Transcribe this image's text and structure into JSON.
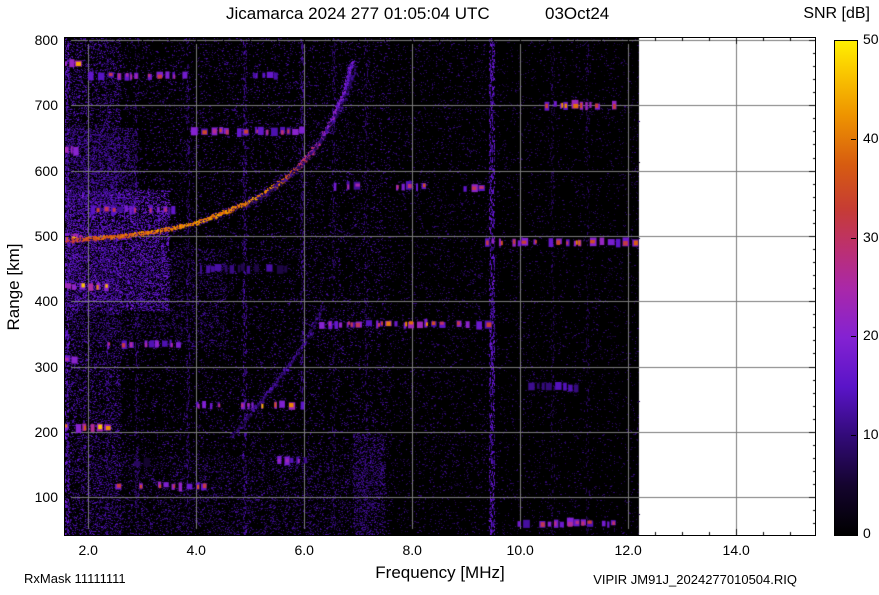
{
  "title": {
    "left": "Jicamarca 2024 277 01:05:04 UTC",
    "right": "03Oct24"
  },
  "ylabel": "Range [km]",
  "footer": {
    "rxmask": "RxMask 11111111",
    "xlabel": "Frequency [MHz]",
    "file": "VIPIR  JM91J_2024277010504.RIQ"
  },
  "colorbar": {
    "label": "SNR [dB]",
    "min": 0,
    "max": 50,
    "ticks": [
      0,
      10,
      20,
      30,
      40,
      50
    ],
    "stops": [
      [
        0,
        "#000000"
      ],
      [
        0.1,
        "#14042e"
      ],
      [
        0.2,
        "#320a78"
      ],
      [
        0.3,
        "#5a14c8"
      ],
      [
        0.4,
        "#8422d2"
      ],
      [
        0.5,
        "#aa28a8"
      ],
      [
        0.58,
        "#bc3070"
      ],
      [
        0.66,
        "#c63c34"
      ],
      [
        0.75,
        "#d75c10"
      ],
      [
        0.85,
        "#ee9400"
      ],
      [
        0.93,
        "#f9c300"
      ],
      [
        1,
        "#ffef00"
      ]
    ]
  },
  "chart_data": {
    "type": "heatmap",
    "title": "Jicamarca 2024 277 01:05:04 UTC 03Oct24",
    "xlabel": "Frequency [MHz]",
    "ylabel": "Range [km]",
    "zlabel": "SNR [dB]",
    "xlim": [
      1.57,
      15.46
    ],
    "ylim": [
      42,
      803
    ],
    "zlim": [
      0,
      50
    ],
    "grid": true,
    "data_fmax": 12.2,
    "xticks": [
      {
        "v": 2,
        "label": "2.0"
      },
      {
        "v": 4,
        "label": "4.0"
      },
      {
        "v": 6,
        "label": "6.0"
      },
      {
        "v": 8,
        "label": "8.0"
      },
      {
        "v": 10,
        "label": "10.0"
      },
      {
        "v": 12,
        "label": "12.0"
      },
      {
        "v": 14,
        "label": "14.0"
      }
    ],
    "yticks": [
      100,
      200,
      300,
      400,
      500,
      600,
      700,
      800
    ],
    "noise_patches": [
      {
        "f": [
          1.57,
          12.2
        ],
        "r": [
          42,
          803
        ],
        "n": 8000,
        "db": [
          4,
          11
        ]
      },
      {
        "f": [
          1.57,
          7.6
        ],
        "r": [
          42,
          803
        ],
        "n": 13000,
        "db": [
          5,
          13
        ]
      },
      {
        "f": [
          1.57,
          2.6
        ],
        "r": [
          42,
          803
        ],
        "n": 6000,
        "db": [
          6,
          15
        ]
      },
      {
        "f": [
          1.6,
          3.5
        ],
        "r": [
          385,
          570
        ],
        "n": 6500,
        "db": [
          8,
          19
        ]
      },
      {
        "f": [
          1.57,
          2.9
        ],
        "r": [
          545,
          665
        ],
        "n": 2200,
        "db": [
          6,
          14
        ]
      },
      {
        "f": [
          1.6,
          4.6
        ],
        "r": [
          330,
          480
        ],
        "n": 2400,
        "db": [
          5,
          12
        ]
      },
      {
        "f": [
          2.0,
          7.3
        ],
        "r": [
          42,
          165
        ],
        "n": 2600,
        "db": [
          5,
          12
        ]
      },
      {
        "f": [
          9.4,
          12.2
        ],
        "r": [
          42,
          803
        ],
        "n": 2200,
        "db": [
          4,
          10
        ]
      },
      {
        "f": [
          6.9,
          7.5
        ],
        "r": [
          42,
          200
        ],
        "n": 1100,
        "db": [
          6,
          13
        ]
      },
      {
        "f": [
          7.6,
          9.4
        ],
        "r": [
          42,
          803
        ],
        "n": 2600,
        "db": [
          4,
          11
        ]
      }
    ],
    "vertical_stripes": [
      {
        "f": 9.48,
        "w": 0.1,
        "r": [
          42,
          803
        ],
        "n": 950,
        "db": [
          8,
          18
        ]
      },
      {
        "f": 4.9,
        "w": 0.07,
        "r": [
          42,
          803
        ],
        "n": 420,
        "db": [
          6,
          14
        ]
      },
      {
        "f": 5.97,
        "w": 0.07,
        "r": [
          250,
          803
        ],
        "n": 330,
        "db": [
          6,
          13
        ]
      },
      {
        "f": 2.9,
        "w": 0.06,
        "r": [
          42,
          803
        ],
        "n": 260,
        "db": [
          6,
          12
        ]
      },
      {
        "f": 3.85,
        "w": 0.06,
        "r": [
          42,
          803
        ],
        "n": 260,
        "db": [
          6,
          12
        ]
      },
      {
        "f": 6.55,
        "w": 0.06,
        "r": [
          42,
          803
        ],
        "n": 240,
        "db": [
          5,
          11
        ]
      },
      {
        "f": 10.6,
        "w": 0.06,
        "r": [
          42,
          803
        ],
        "n": 200,
        "db": [
          4,
          10
        ]
      },
      {
        "f": 11.25,
        "w": 0.06,
        "r": [
          42,
          803
        ],
        "n": 200,
        "db": [
          4,
          10
        ]
      },
      {
        "f": 2.35,
        "w": 0.06,
        "r": [
          42,
          803
        ],
        "n": 240,
        "db": [
          6,
          12
        ]
      },
      {
        "f": 7.15,
        "w": 0.06,
        "r": [
          42,
          803
        ],
        "n": 200,
        "db": [
          5,
          11
        ]
      },
      {
        "f": 1.61,
        "w": 0.08,
        "r": [
          42,
          803
        ],
        "n": 700,
        "db": [
          8,
          18
        ]
      }
    ],
    "rfi_bands": [
      {
        "r": 763,
        "f": [
          1.57,
          1.9
        ],
        "base": 22,
        "core": 40
      },
      {
        "r": 745,
        "f": [
          2.0,
          3.75
        ],
        "base": 16,
        "core": 28
      },
      {
        "r": 745,
        "f": [
          5.05,
          5.55
        ],
        "base": 14,
        "core": 0
      },
      {
        "r": 700,
        "f": [
          10.35,
          11.8
        ],
        "base": 20,
        "core": 38
      },
      {
        "r": 660,
        "f": [
          3.9,
          5.95
        ],
        "base": 17,
        "core": 31
      },
      {
        "r": 631,
        "f": [
          1.57,
          1.85
        ],
        "base": 24,
        "core": 40
      },
      {
        "r": 576,
        "f": [
          6.55,
          7.05
        ],
        "base": 15,
        "core": 26
      },
      {
        "r": 576,
        "f": [
          7.7,
          8.2
        ],
        "base": 17,
        "core": 33
      },
      {
        "r": 574,
        "f": [
          8.95,
          9.35
        ],
        "base": 17,
        "core": 33
      },
      {
        "r": 540,
        "f": [
          2.05,
          3.55
        ],
        "base": 16,
        "core": 31
      },
      {
        "r": 490,
        "f": [
          9.35,
          12.15
        ],
        "base": 19,
        "core": 36
      },
      {
        "r": 497,
        "f": [
          1.57,
          2.0
        ],
        "base": 22,
        "core": 40
      },
      {
        "r": 450,
        "f": [
          3.9,
          5.7
        ],
        "base": 9,
        "core": 0
      },
      {
        "r": 423,
        "f": [
          1.57,
          2.3
        ],
        "base": 23,
        "core": 42
      },
      {
        "r": 365,
        "f": [
          6.15,
          7.5
        ],
        "base": 18,
        "core": 30
      },
      {
        "r": 365,
        "f": [
          7.5,
          8.35
        ],
        "base": 20,
        "core": 40
      },
      {
        "r": 365,
        "f": [
          8.35,
          9.45
        ],
        "base": 17,
        "core": 31
      },
      {
        "r": 334,
        "f": [
          2.35,
          3.8
        ],
        "base": 16,
        "core": 27
      },
      {
        "r": 310,
        "f": [
          1.57,
          1.8
        ],
        "base": 17,
        "core": 25
      },
      {
        "r": 268,
        "f": [
          10.15,
          11.0
        ],
        "base": 11,
        "core": 0
      },
      {
        "r": 241,
        "f": [
          4.0,
          5.2
        ],
        "base": 15,
        "core": 24
      },
      {
        "r": 241,
        "f": [
          5.2,
          5.85
        ],
        "base": 19,
        "core": 40
      },
      {
        "r": 241,
        "f": [
          5.85,
          6.15
        ],
        "base": 14,
        "core": 0
      },
      {
        "r": 207,
        "f": [
          1.57,
          2.3
        ],
        "base": 23,
        "core": 42
      },
      {
        "r": 155,
        "f": [
          5.5,
          6.0
        ],
        "base": 15,
        "core": 25
      },
      {
        "r": 152,
        "f": [
          2.85,
          3.35
        ],
        "base": 9,
        "core": 0
      },
      {
        "r": 117,
        "f": [
          2.5,
          4.1
        ],
        "base": 18,
        "core": 35
      },
      {
        "r": 60,
        "f": [
          9.95,
          11.8
        ],
        "base": 16,
        "core": 29
      }
    ],
    "traces": [
      {
        "name": "f-layer-trace",
        "halo": 4,
        "dense": 3,
        "points": [
          [
            1.6,
            493,
            32
          ],
          [
            2.0,
            496,
            35
          ],
          [
            2.6,
            500,
            38
          ],
          [
            3.3,
            508,
            40
          ],
          [
            4.0,
            520,
            42
          ],
          [
            4.6,
            539,
            40
          ],
          [
            5.2,
            562,
            42
          ],
          [
            5.65,
            588,
            38
          ],
          [
            6.0,
            616,
            30
          ],
          [
            6.3,
            646,
            24
          ],
          [
            6.55,
            685,
            20
          ],
          [
            6.75,
            723,
            17
          ],
          [
            6.88,
            766,
            15
          ]
        ]
      },
      {
        "name": "f-layer-xmode",
        "halo": 7,
        "dense": 1.2,
        "points": [
          [
            4.95,
            545,
            9
          ],
          [
            5.45,
            575,
            10
          ],
          [
            5.85,
            600,
            10
          ],
          [
            6.2,
            635,
            10
          ],
          [
            6.5,
            672,
            10
          ],
          [
            6.75,
            710,
            9
          ],
          [
            6.95,
            760,
            8
          ]
        ]
      },
      {
        "name": "oblique-echo",
        "halo": 5,
        "dense": 1.4,
        "points": [
          [
            4.65,
            192,
            9
          ],
          [
            5.0,
            228,
            10
          ],
          [
            5.4,
            268,
            11
          ],
          [
            5.8,
            312,
            11
          ],
          [
            6.1,
            350,
            10
          ],
          [
            6.35,
            395,
            8
          ]
        ]
      }
    ]
  }
}
